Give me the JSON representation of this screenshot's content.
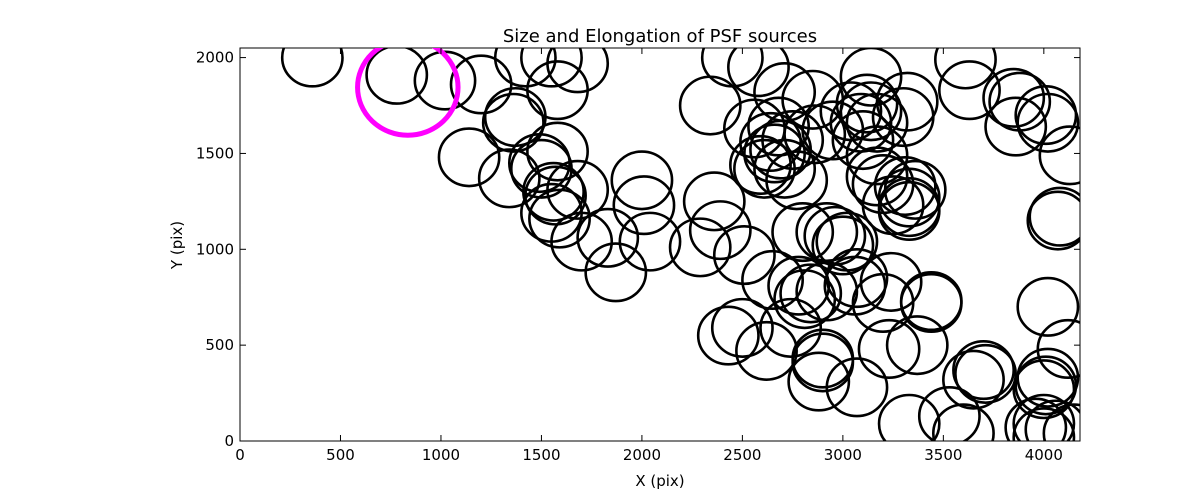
{
  "chart_data": {
    "type": "scatter",
    "title": "Size and Elongation of PSF sources",
    "xlabel": "X (pix)",
    "ylabel": "Y (pix)",
    "xlim": [
      0,
      4180
    ],
    "ylim": [
      0,
      2050
    ],
    "xticks": [
      0,
      500,
      1000,
      1500,
      2000,
      2500,
      3000,
      3500,
      4000
    ],
    "yticks": [
      0,
      500,
      1000,
      1500,
      2000
    ],
    "grid": false,
    "marker": "open circle",
    "source_color": "#000000",
    "highlight_color": "#ff00ff",
    "highlight": {
      "x": 835,
      "y": 1845,
      "radius": 250
    },
    "series": [
      {
        "radius": 150,
        "points": [
          [
            360,
            2000
          ],
          [
            780,
            1910
          ],
          [
            1020,
            1880
          ],
          [
            1200,
            1860
          ],
          [
            1420,
            2000
          ],
          [
            1550,
            2000
          ],
          [
            1680,
            1970
          ],
          [
            1580,
            1830
          ],
          [
            1370,
            1690
          ],
          [
            1360,
            1660
          ],
          [
            1140,
            1480
          ],
          [
            1340,
            1370
          ],
          [
            1490,
            1450
          ],
          [
            1580,
            1510
          ],
          [
            1500,
            1420
          ],
          [
            1560,
            1300
          ],
          [
            1570,
            1280
          ],
          [
            1680,
            1310
          ],
          [
            1550,
            1190
          ],
          [
            1590,
            1160
          ],
          [
            1700,
            1040
          ],
          [
            1830,
            1060
          ],
          [
            2000,
            1360
          ],
          [
            2010,
            1230
          ],
          [
            2040,
            1040
          ],
          [
            1870,
            880
          ],
          [
            2290,
            1010
          ],
          [
            2360,
            1250
          ],
          [
            2390,
            1100
          ],
          [
            2510,
            970
          ],
          [
            2340,
            1750
          ],
          [
            2450,
            2000
          ],
          [
            2580,
            1950
          ],
          [
            2710,
            1820
          ],
          [
            2560,
            1630
          ],
          [
            2680,
            1640
          ],
          [
            2640,
            1560
          ],
          [
            2690,
            1520
          ],
          [
            2660,
            1500
          ],
          [
            2590,
            1440
          ],
          [
            2610,
            1420
          ],
          [
            2710,
            1420
          ],
          [
            2770,
            1360
          ],
          [
            2750,
            1570
          ],
          [
            2860,
            1600
          ],
          [
            2850,
            1780
          ],
          [
            2950,
            1620
          ],
          [
            3040,
            1720
          ],
          [
            3090,
            1660
          ],
          [
            3140,
            1900
          ],
          [
            3120,
            1760
          ],
          [
            3140,
            1720
          ],
          [
            3170,
            1660
          ],
          [
            3100,
            1570
          ],
          [
            3170,
            1490
          ],
          [
            3320,
            1770
          ],
          [
            3300,
            1690
          ],
          [
            3170,
            1380
          ],
          [
            3200,
            1340
          ],
          [
            3250,
            1230
          ],
          [
            3310,
            1330
          ],
          [
            3330,
            1270
          ],
          [
            3360,
            1310
          ],
          [
            3330,
            1220
          ],
          [
            3330,
            1200
          ],
          [
            2800,
            1090
          ],
          [
            2920,
            1090
          ],
          [
            3000,
            1020
          ],
          [
            3020,
            1040
          ],
          [
            2960,
            1070
          ],
          [
            2650,
            840
          ],
          [
            2780,
            810
          ],
          [
            2840,
            770
          ],
          [
            2810,
            740
          ],
          [
            2920,
            780
          ],
          [
            3070,
            850
          ],
          [
            3060,
            810
          ],
          [
            3240,
            830
          ],
          [
            3200,
            720
          ],
          [
            3440,
            730
          ],
          [
            3440,
            720
          ],
          [
            2430,
            550
          ],
          [
            2500,
            590
          ],
          [
            2620,
            470
          ],
          [
            2740,
            590
          ],
          [
            2900,
            430
          ],
          [
            2900,
            410
          ],
          [
            2880,
            310
          ],
          [
            3070,
            280
          ],
          [
            3230,
            480
          ],
          [
            3370,
            500
          ],
          [
            3330,
            90
          ],
          [
            3530,
            130
          ],
          [
            3650,
            320
          ],
          [
            3700,
            370
          ],
          [
            3710,
            350
          ],
          [
            3610,
            1990
          ],
          [
            3630,
            1830
          ],
          [
            3850,
            1790
          ],
          [
            3880,
            1770
          ],
          [
            3860,
            1640
          ],
          [
            4010,
            1700
          ],
          [
            4020,
            1660
          ],
          [
            4130,
            1490
          ],
          [
            4080,
            1170
          ],
          [
            4070,
            1150
          ],
          [
            4020,
            700
          ],
          [
            4120,
            480
          ],
          [
            4020,
            330
          ],
          [
            4010,
            290
          ],
          [
            4000,
            270
          ],
          [
            4000,
            90
          ],
          [
            3960,
            70
          ],
          [
            4060,
            60
          ],
          [
            4150,
            40
          ],
          [
            4000,
            20
          ],
          [
            3600,
            40
          ]
        ]
      }
    ]
  }
}
